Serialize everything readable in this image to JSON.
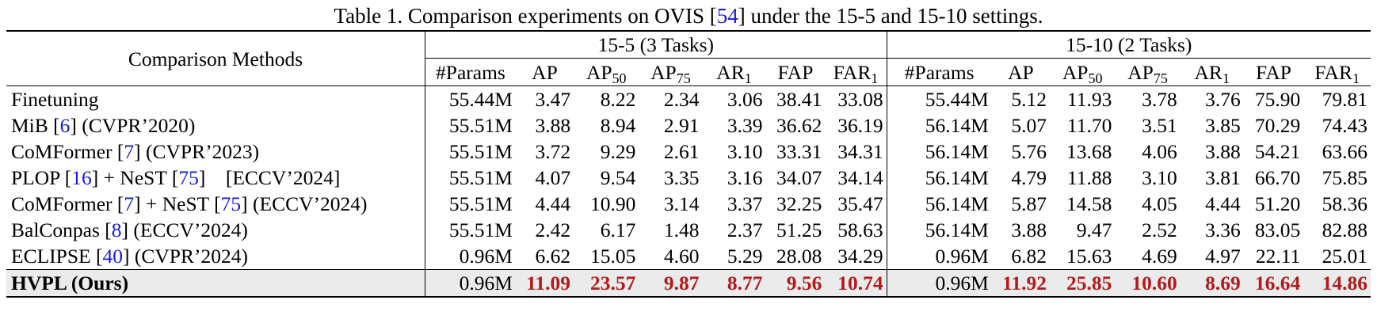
{
  "caption": {
    "prefix": "Table 1. Comparison experiments on OVIS [",
    "cite": "54",
    "suffix": "] under the 15-5 and 15-10 settings."
  },
  "header": {
    "method_col": "Comparison Methods",
    "group1": "15-5 (3 Tasks)",
    "group2": "15-10 (2 Tasks)",
    "metrics": [
      {
        "base": "#Params",
        "sub": ""
      },
      {
        "base": "AP",
        "sub": ""
      },
      {
        "base": "AP",
        "sub": "50"
      },
      {
        "base": "AP",
        "sub": "75"
      },
      {
        "base": "AR",
        "sub": "1"
      },
      {
        "base": "FAP",
        "sub": ""
      },
      {
        "base": "FAR",
        "sub": "1"
      }
    ]
  },
  "rows": [
    {
      "name": "Finetuning",
      "cite1": "",
      "mid": "",
      "cite2": "",
      "venue": "",
      "g1": [
        "55.44M",
        "3.47",
        "8.22",
        "2.34",
        "3.06",
        "38.41",
        "33.08"
      ],
      "g2": [
        "55.44M",
        "5.12",
        "11.93",
        "3.78",
        "3.76",
        "75.90",
        "79.81"
      ]
    },
    {
      "name": "MiB ",
      "cite1": "6",
      "mid": "",
      "cite2": "",
      "venue": " (CVPR’2020)",
      "g1": [
        "55.51M",
        "3.88",
        "8.94",
        "2.91",
        "3.39",
        "36.62",
        "36.19"
      ],
      "g2": [
        "56.14M",
        "5.07",
        "11.70",
        "3.51",
        "3.85",
        "70.29",
        "74.43"
      ]
    },
    {
      "name": "CoMFormer ",
      "cite1": "7",
      "mid": "",
      "cite2": "",
      "venue": " (CVPR’2023)",
      "g1": [
        "55.51M",
        "3.72",
        "9.29",
        "2.61",
        "3.10",
        "33.31",
        "34.31"
      ],
      "g2": [
        "56.14M",
        "5.76",
        "13.68",
        "4.06",
        "3.88",
        "54.21",
        "63.66"
      ]
    },
    {
      "name": "PLOP ",
      "cite1": "16",
      "mid": " + NeST ",
      "cite2": "75",
      "venue": "    [ECCV’2024]",
      "g1": [
        "55.51M",
        "4.07",
        "9.54",
        "3.35",
        "3.16",
        "34.07",
        "34.14"
      ],
      "g2": [
        "56.14M",
        "4.79",
        "11.88",
        "3.10",
        "3.81",
        "66.70",
        "75.85"
      ]
    },
    {
      "name": "CoMFormer ",
      "cite1": "7",
      "mid": " + NeST ",
      "cite2": "75",
      "venue": " (ECCV’2024)",
      "g1": [
        "55.51M",
        "4.44",
        "10.90",
        "3.14",
        "3.37",
        "32.25",
        "35.47"
      ],
      "g2": [
        "56.14M",
        "5.87",
        "14.58",
        "4.05",
        "4.44",
        "51.20",
        "58.36"
      ]
    },
    {
      "name": "BalConpas ",
      "cite1": "8",
      "mid": "",
      "cite2": "",
      "venue": " (ECCV’2024)",
      "g1": [
        "55.51M",
        "2.42",
        "6.17",
        "1.48",
        "2.37",
        "51.25",
        "58.63"
      ],
      "g2": [
        "56.14M",
        "3.88",
        "9.47",
        "2.52",
        "3.36",
        "83.05",
        "82.88"
      ]
    },
    {
      "name": "ECLIPSE ",
      "cite1": "40",
      "mid": "",
      "cite2": "",
      "venue": " (CVPR’2024)",
      "g1": [
        "0.96M",
        "6.62",
        "15.05",
        "4.60",
        "5.29",
        "28.08",
        "34.29"
      ],
      "g2": [
        "0.96M",
        "6.82",
        "15.63",
        "4.69",
        "4.97",
        "22.11",
        "25.01"
      ]
    }
  ],
  "ours": {
    "name": "HVPL",
    "paren_open": " (",
    "tag": "Ours",
    "paren_close": ")",
    "g1": [
      "0.96M",
      "11.09",
      "23.57",
      "9.87",
      "8.77",
      "9.56",
      "10.74"
    ],
    "g2": [
      "0.96M",
      "11.92",
      "25.85",
      "10.60",
      "8.69",
      "16.64",
      "14.86"
    ]
  },
  "colors": {
    "best": "#b01b1b",
    "cite": "#1a1ad6",
    "highlight_row": "#ebebeb"
  }
}
